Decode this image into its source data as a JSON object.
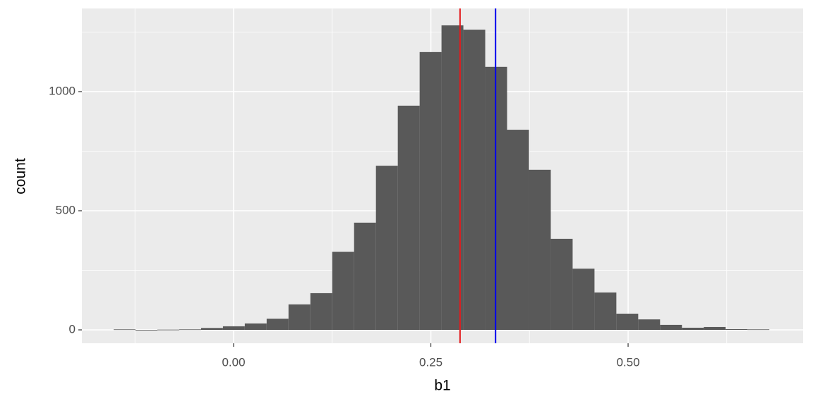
{
  "chart_data": {
    "type": "histogram",
    "xlabel": "b1",
    "ylabel": "count",
    "bins": [
      -0.152,
      -0.1243,
      -0.0966,
      -0.0689,
      -0.0412,
      -0.0135,
      0.0142,
      0.0419,
      0.0696,
      0.0973,
      0.125,
      0.1527,
      0.1804,
      0.2081,
      0.2358,
      0.2635,
      0.2912,
      0.3189,
      0.3466,
      0.3743,
      0.402,
      0.4297,
      0.4574,
      0.4851,
      0.5128,
      0.5405,
      0.5682,
      0.5959,
      0.6236,
      0.6513,
      0.679
    ],
    "counts": [
      2,
      0,
      1,
      2,
      8,
      15,
      27,
      47,
      107,
      154,
      328,
      450,
      689,
      941,
      1166,
      1278,
      1260,
      1104,
      840,
      672,
      382,
      257,
      157,
      68,
      44,
      21,
      9,
      12,
      3,
      2
    ],
    "color": "#595959",
    "vlines": [
      {
        "value": 0.287,
        "color": "#e31a1c"
      },
      {
        "value": 0.332,
        "color": "#0000ee"
      }
    ],
    "xlim": [
      -0.1923,
      0.7218
    ],
    "ylim": [
      -56.2,
      1349
    ],
    "xticks": [
      {
        "value": 0,
        "label": "0.00"
      },
      {
        "value": 0.25,
        "label": "0.25"
      },
      {
        "value": 0.5,
        "label": "0.50"
      }
    ],
    "yticks": [
      0,
      500,
      1000
    ],
    "grid": true
  }
}
